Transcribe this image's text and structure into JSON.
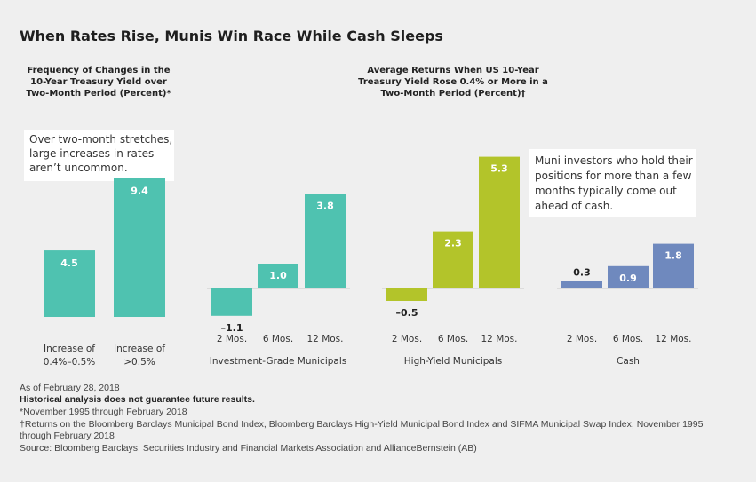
{
  "title": "When Rates Rise, Munis Win Race While Cash Sleeps",
  "colors": {
    "background": "#efefef",
    "teal": "#4fc2b0",
    "lime": "#b3c42a",
    "blue": "#6f89be",
    "note_bg": "#ffffff"
  },
  "chart_data": [
    {
      "type": "bar",
      "title": [
        "Frequency of Changes in the",
        "10-Year Treasury Yield over",
        "Two-Month Period (Percent)*"
      ],
      "categories": [
        [
          "Increase of",
          "0.4%–0.5%"
        ],
        [
          "Increase of",
          ">0.5%"
        ]
      ],
      "values": [
        4.5,
        9.4
      ],
      "value_labels": [
        "4.5",
        "9.4"
      ],
      "color": "#4fc2b0",
      "annotation": [
        "Over two-month stretches,",
        "large increases in rates",
        "aren’t uncommon."
      ]
    },
    {
      "type": "bar",
      "title": [
        "Average Returns When US 10-Year",
        "Treasury Yield Rose 0.4% or More in a",
        "Two-Month Period (Percent)†"
      ],
      "groups": [
        {
          "name": "Investment-Grade Municipals",
          "color": "#4fc2b0",
          "categories": [
            "2 Mos.",
            "6 Mos.",
            "12 Mos."
          ],
          "values": [
            -1.1,
            1.0,
            3.8
          ],
          "value_labels": [
            "–1.1",
            "1.0",
            "3.8"
          ]
        },
        {
          "name": "High-Yield Municipals",
          "color": "#b3c42a",
          "categories": [
            "2 Mos.",
            "6 Mos.",
            "12 Mos."
          ],
          "values": [
            -0.5,
            2.3,
            5.3
          ],
          "value_labels": [
            "–0.5",
            "2.3",
            "5.3"
          ]
        },
        {
          "name": "Cash",
          "color": "#6f89be",
          "categories": [
            "2 Mos.",
            "6 Mos.",
            "12 Mos."
          ],
          "values": [
            0.3,
            0.9,
            1.8
          ],
          "value_labels": [
            "0.3",
            "0.9",
            "1.8"
          ]
        }
      ],
      "annotation": [
        "Muni investors who hold their",
        "positions for more than a few",
        "months typically come out",
        "ahead of cash."
      ]
    }
  ],
  "footnotes": {
    "date": "As of February 28, 2018",
    "disclaimer": "Historical analysis does not guarantee future results.",
    "star": "*November 1995 through February 2018",
    "dagger": [
      "†Returns on the Bloomberg Barclays Municipal Bond Index, Bloomberg Barclays High-Yield Municipal Bond Index and SIFMA Municipal Swap Index, November 1995",
      "through February 2018"
    ],
    "source": "Source: Bloomberg Barclays, Securities Industry and Financial Markets Association and AllianceBernstein (AB)"
  }
}
